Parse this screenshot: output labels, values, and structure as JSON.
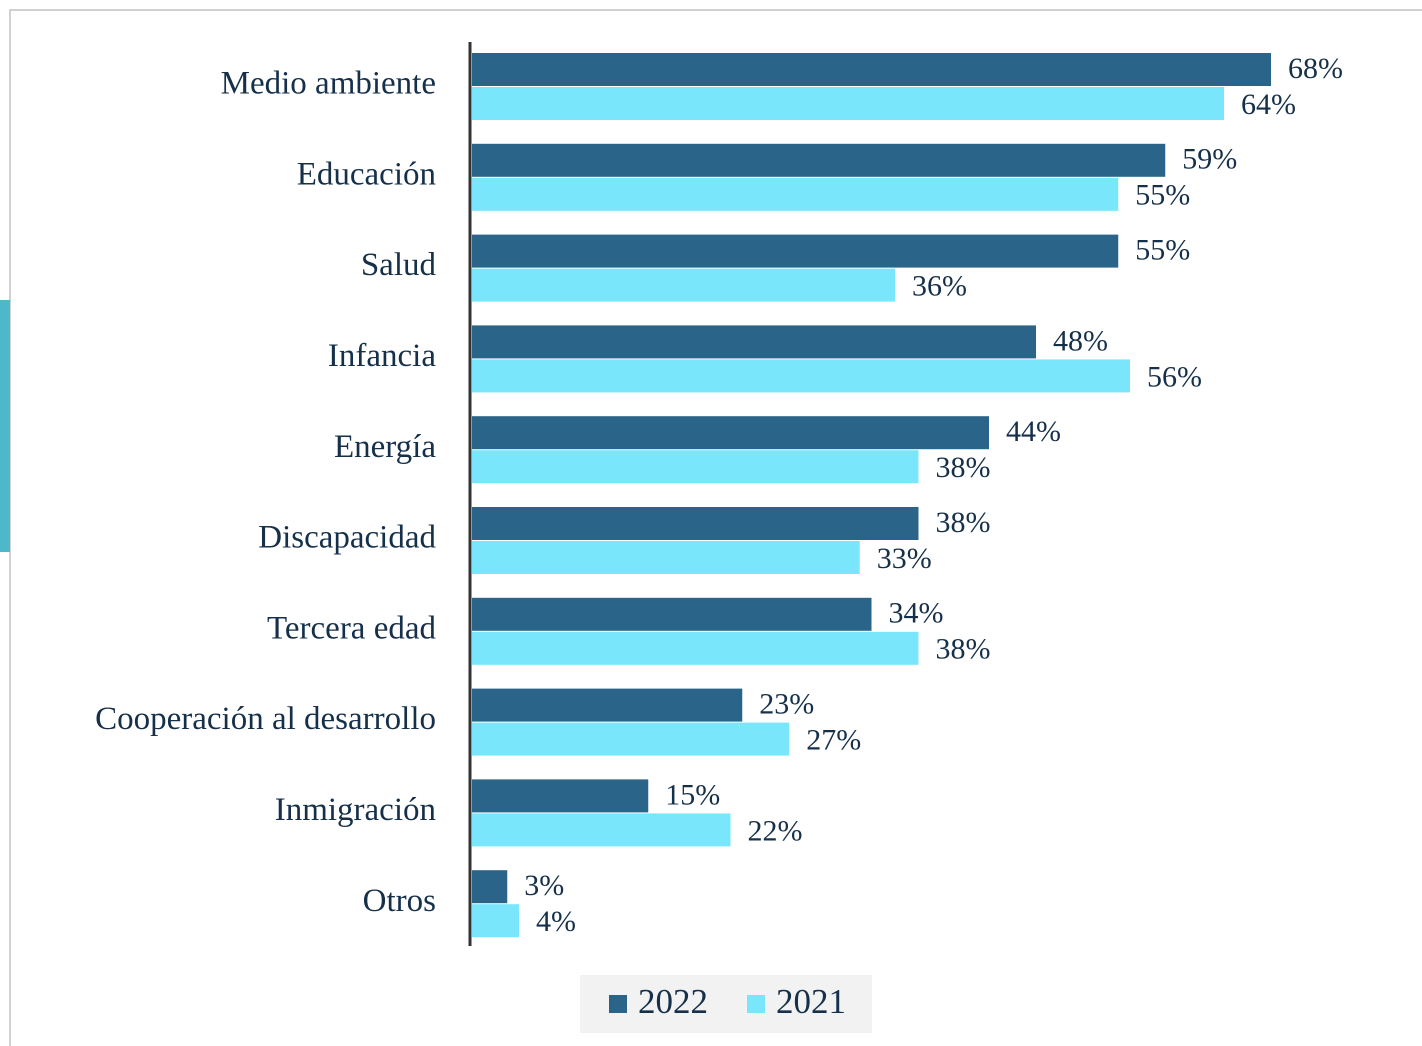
{
  "chart_data": {
    "type": "bar",
    "orientation": "horizontal",
    "categories": [
      "Medio ambiente",
      "Educación",
      "Salud",
      "Infancia",
      "Energía",
      "Discapacidad",
      "Tercera edad",
      "Cooperación al desarrollo",
      "Inmigración",
      "Otros"
    ],
    "series": [
      {
        "name": "2022",
        "color": "#2a6589",
        "values": [
          68,
          59,
          55,
          48,
          44,
          38,
          34,
          23,
          15,
          3
        ],
        "value_labels": [
          "68%",
          "59%",
          "55%",
          "48%",
          "44%",
          "38%",
          "34%",
          "23%",
          "15%",
          "3%"
        ]
      },
      {
        "name": "2021",
        "color": "#7ae6fc",
        "values": [
          64,
          55,
          36,
          56,
          38,
          33,
          38,
          27,
          22,
          4
        ],
        "value_labels": [
          "64%",
          "55%",
          "36%",
          "56%",
          "38%",
          "33%",
          "38%",
          "27%",
          "22%",
          "4%"
        ]
      }
    ],
    "legend": "bottom"
  }
}
